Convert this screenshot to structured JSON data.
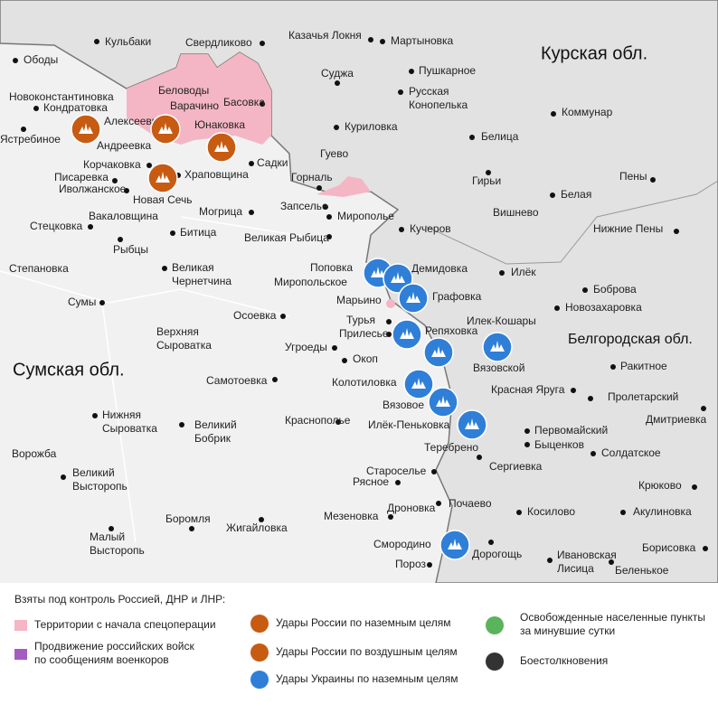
{
  "regions": [
    "Курская обл.",
    "Белгородская обл.",
    "Сумская обл."
  ],
  "places": [
    "Ободы",
    "Кульбаки",
    "Свердликово",
    "Казачья Локня",
    "Мартыновка",
    "Новоконстантиновка",
    "Кондратовка",
    "Беловоды",
    "Варачино",
    "Басовка",
    "Суджа",
    "Пушкарное",
    [
      "Русская",
      "Конопелька"
    ],
    "Алексеевка",
    "Ястребиное",
    "Юнаковка",
    "Куриловка",
    "Коммунар",
    "Андреевка",
    "Белица",
    "Гуево",
    "Садки",
    "Корчаковка",
    "Писаревка",
    "Храповщина",
    "Иволжанское",
    "Горналь",
    "Гирьи",
    "Пены",
    "Новая Сечь",
    "Белая",
    "Запселье",
    "Стецковка",
    "Вакаловщина",
    "Могрица",
    "Мирополье",
    "Вишнево",
    "Кучеров",
    "Рыбцы",
    "Битица",
    "Великая Рыбица",
    "Нижние Пены",
    "Степановка",
    [
      "Великая",
      "Чернетчина"
    ],
    "Поповка",
    "Демидовка",
    "Илёк",
    "Миропольское",
    "Боброва",
    "Графовка",
    "Сумы",
    "Марьино",
    "Новозахаровка",
    "Осоевка",
    "Турья",
    "Илек-Кошары",
    [
      "Верхняя",
      "Сыроватка"
    ],
    "Прилесье",
    "Репяховка",
    "Угроеды",
    "Ракитное",
    "Вязовской",
    "Окоп",
    "Самотоевка",
    "Колотиловка",
    "Красная Яруга",
    "Пролетарский",
    "Вязовое",
    [
      "Нижняя",
      "Сыроватка"
    ],
    [
      "Великий",
      "Бобрик"
    ],
    "Краснополье",
    "Илёк-Пеньковка",
    "Первомайский",
    "Дмитриевка",
    "Быценков",
    "Теребрено",
    "Солдатское",
    "Ворожба",
    "Сергиевка",
    "Староселье",
    [
      "Великий",
      "Высторопь"
    ],
    "Рясное",
    "Крюково",
    "Почаево",
    "Дроновка",
    "Мезеновка",
    "Косилово",
    "Акулиновка",
    "Боромля",
    "Жигайловка",
    [
      "Малый",
      "Высторопь"
    ],
    "Смородино",
    "Дорогощь",
    [
      "Ивановская",
      "Лисица"
    ],
    "Борисовка",
    "Пороз",
    "Беленькое"
  ],
  "legend": {
    "title": "Взяты под контроль Россией, ДНР и ЛНР:",
    "items": [
      "Территории с начала спецоперации",
      [
        "Продвижение российских войск",
        "по сообщениям военкоров"
      ],
      "Удары России по наземным целям",
      "Удары России по воздушным целям",
      "Удары Украины по наземным целям",
      [
        "Освобожденные населенные пункты",
        "за минувшие сутки"
      ],
      "Боестолкновения"
    ]
  }
}
